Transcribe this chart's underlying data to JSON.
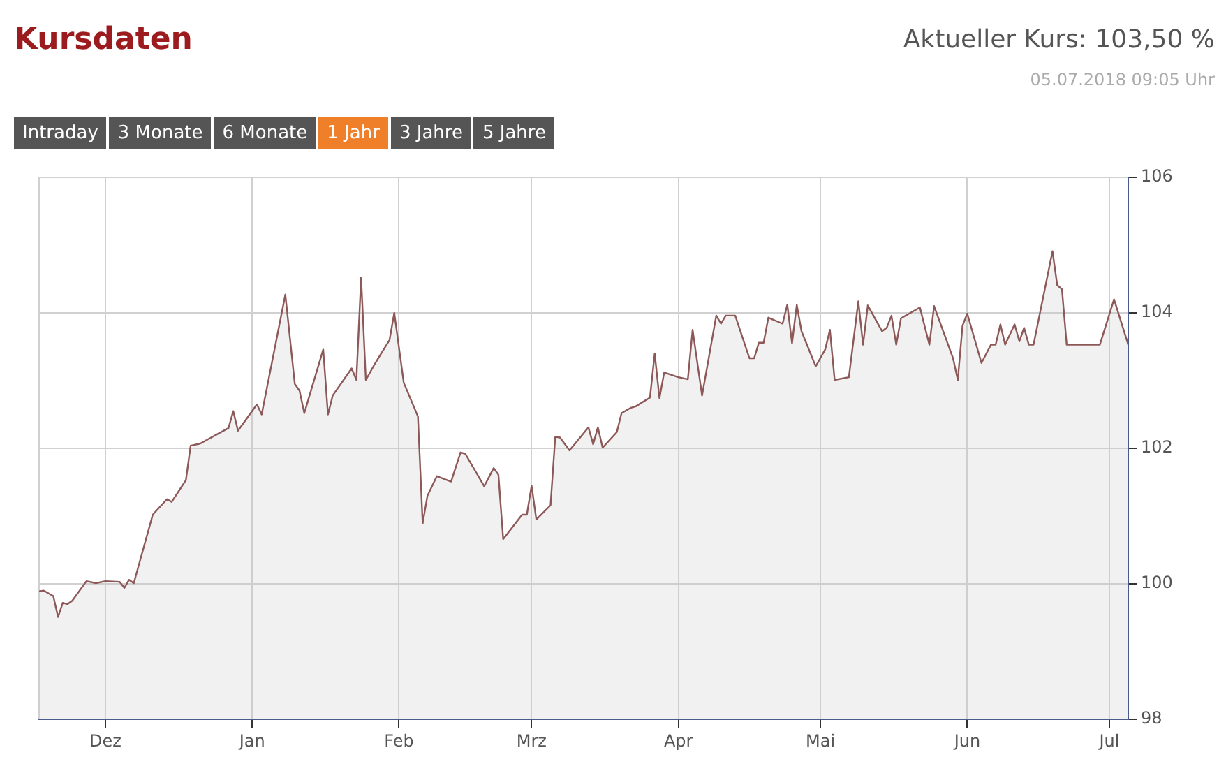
{
  "chart_data": {
    "type": "area",
    "title": "Kursdaten",
    "subtitle": "Aktueller Kurs: 103,50 %",
    "annotations": [
      "05.07.2018 09:05 Uhr",
      "Intraday",
      "3 Monate",
      "6 Monate",
      "1 Jahr",
      "3 Jahre",
      "5 Jahre"
    ],
    "x": [
      "2017-11-17",
      "2017-11-18",
      "2017-11-20",
      "2017-11-21",
      "2017-11-22",
      "2017-11-23",
      "2017-11-24",
      "2017-11-27",
      "2017-11-29",
      "2017-12-01",
      "2017-12-04",
      "2017-12-05",
      "2017-12-06",
      "2017-12-07",
      "2017-12-11",
      "2017-12-14",
      "2017-12-15",
      "2017-12-18",
      "2017-12-19",
      "2017-12-21",
      "2017-12-27",
      "2017-12-28",
      "2017-12-29",
      "2018-01-02",
      "2018-01-03",
      "2018-01-08",
      "2018-01-10",
      "2018-01-11",
      "2018-01-12",
      "2018-01-16",
      "2018-01-17",
      "2018-01-18",
      "2018-01-22",
      "2018-01-23",
      "2018-01-24",
      "2018-01-25",
      "2018-01-27",
      "2018-01-30",
      "2018-01-31",
      "2018-02-02",
      "2018-02-05",
      "2018-02-06",
      "2018-02-07",
      "2018-02-09",
      "2018-02-12",
      "2018-02-14",
      "2018-02-15",
      "2018-02-19",
      "2018-02-21",
      "2018-02-22",
      "2018-02-23",
      "2018-02-27",
      "2018-02-28",
      "2018-03-01",
      "2018-03-02",
      "2018-03-05",
      "2018-03-06",
      "2018-03-07",
      "2018-03-09",
      "2018-03-13",
      "2018-03-14",
      "2018-03-15",
      "2018-03-16",
      "2018-03-19",
      "2018-03-20",
      "2018-03-22",
      "2018-03-23",
      "2018-03-26",
      "2018-03-27",
      "2018-03-28",
      "2018-03-29",
      "2018-04-01",
      "2018-04-03",
      "2018-04-04",
      "2018-04-06",
      "2018-04-09",
      "2018-04-10",
      "2018-04-11",
      "2018-04-13",
      "2018-04-16",
      "2018-04-17",
      "2018-04-18",
      "2018-04-19",
      "2018-04-20",
      "2018-04-23",
      "2018-04-24",
      "2018-04-25",
      "2018-04-26",
      "2018-04-27",
      "2018-04-30",
      "2018-05-02",
      "2018-05-03",
      "2018-05-04",
      "2018-05-07",
      "2018-05-09",
      "2018-05-10",
      "2018-05-11",
      "2018-05-14",
      "2018-05-15",
      "2018-05-16",
      "2018-05-17",
      "2018-05-18",
      "2018-05-22",
      "2018-05-24",
      "2018-05-25",
      "2018-05-29",
      "2018-05-30",
      "2018-05-31",
      "2018-06-01",
      "2018-06-04",
      "2018-06-06",
      "2018-06-07",
      "2018-06-08",
      "2018-06-09",
      "2018-06-11",
      "2018-06-12",
      "2018-06-13",
      "2018-06-14",
      "2018-06-15",
      "2018-06-19",
      "2018-06-20",
      "2018-06-21",
      "2018-06-22",
      "2018-06-29",
      "2018-07-02",
      "2018-07-05"
    ],
    "series": [
      {
        "color": "#8c5858",
        "values": [
          99.89,
          99.9,
          99.82,
          99.51,
          99.72,
          99.7,
          99.75,
          100.04,
          100.01,
          100.04,
          100.03,
          99.94,
          100.06,
          100.01,
          101.02,
          101.25,
          101.21,
          101.53,
          102.04,
          102.07,
          102.3,
          102.55,
          102.26,
          102.65,
          102.5,
          104.27,
          102.95,
          102.85,
          102.52,
          103.46,
          102.5,
          102.78,
          103.18,
          103.01,
          104.52,
          103.01,
          103.26,
          103.6,
          104.0,
          102.97,
          102.47,
          100.89,
          101.3,
          101.59,
          101.51,
          101.94,
          101.92,
          101.44,
          101.71,
          101.61,
          100.66,
          101.02,
          101.02,
          101.45,
          100.95,
          101.16,
          102.17,
          102.16,
          101.97,
          102.31,
          102.06,
          102.31,
          102.01,
          102.24,
          102.52,
          102.6,
          102.62,
          102.75,
          103.4,
          102.74,
          103.12,
          103.05,
          103.02,
          103.75,
          102.78,
          103.96,
          103.84,
          103.96,
          103.96,
          103.33,
          103.33,
          103.56,
          103.56,
          103.93,
          103.84,
          104.12,
          103.55,
          104.12,
          103.73,
          103.21,
          103.46,
          103.75,
          103.01,
          103.05,
          104.17,
          103.53,
          104.11,
          103.73,
          103.78,
          103.96,
          103.53,
          103.92,
          104.08,
          103.53,
          104.1,
          103.33,
          103.01,
          103.81,
          103.99,
          103.26,
          103.53,
          103.53,
          103.83,
          103.53,
          103.83,
          103.58,
          103.78,
          103.53,
          103.53,
          104.91,
          104.41,
          104.35,
          103.53,
          103.53,
          104.2,
          103.53
        ]
      }
    ],
    "xlim": [
      "2017-11-17",
      "2018-07-05"
    ],
    "xticks": [
      {
        "value": "2017-12-01",
        "label": "Dez"
      },
      {
        "value": "2018-01-01",
        "label": "Jan"
      },
      {
        "value": "2018-02-01",
        "label": "Feb"
      },
      {
        "value": "2018-03-01",
        "label": "Mrz"
      },
      {
        "value": "2018-04-01",
        "label": "Apr"
      },
      {
        "value": "2018-05-01",
        "label": "Mai"
      },
      {
        "value": "2018-06-01",
        "label": "Jun"
      },
      {
        "value": "2018-07-01",
        "label": "Jul"
      }
    ],
    "ylim": [
      98,
      106
    ],
    "yticks": [
      98,
      100,
      102,
      104,
      106
    ],
    "grid": true,
    "legend": false
  }
}
